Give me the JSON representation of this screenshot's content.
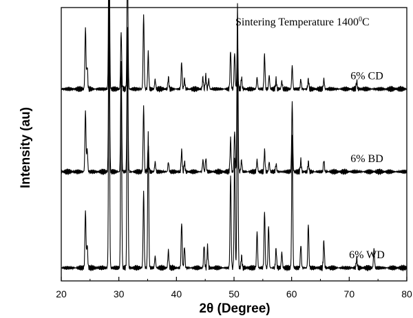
{
  "chart_data": {
    "type": "line",
    "title": "",
    "annotation": {
      "text": "Sintering Temperature 1400",
      "sup": "0",
      "suffix": "C"
    },
    "xlabel": "2θ (Degree)",
    "ylabel": "Intensity (au)",
    "xlim": [
      20,
      80
    ],
    "xticks": [
      20,
      30,
      40,
      50,
      60,
      70,
      80
    ],
    "y_ticks_shown": false,
    "grid": false,
    "legend": "none",
    "line_color": "#000000",
    "series": [
      {
        "name": "6% CD",
        "baseline": 0.93,
        "peaks": [
          [
            24.2,
            0.32
          ],
          [
            24.5,
            0.12
          ],
          [
            28.3,
            0.97
          ],
          [
            30.4,
            0.3
          ],
          [
            31.5,
            0.67
          ],
          [
            34.3,
            0.39
          ],
          [
            35.1,
            0.19
          ],
          [
            36.3,
            0.05
          ],
          [
            38.6,
            0.06
          ],
          [
            40.9,
            0.14
          ],
          [
            41.4,
            0.05
          ],
          [
            44.6,
            0.06
          ],
          [
            45.1,
            0.07
          ],
          [
            45.6,
            0.05
          ],
          [
            49.4,
            0.2
          ],
          [
            50.1,
            0.19
          ],
          [
            50.6,
            0.24
          ],
          [
            51.3,
            0.06
          ],
          [
            54.0,
            0.06
          ],
          [
            55.3,
            0.18
          ],
          [
            56.1,
            0.07
          ],
          [
            57.3,
            0.05
          ],
          [
            58.3,
            0.04
          ],
          [
            60.1,
            0.12
          ],
          [
            61.6,
            0.05
          ],
          [
            62.9,
            0.05
          ],
          [
            65.6,
            0.05
          ],
          [
            71.3,
            0.04
          ]
        ]
      },
      {
        "name": "6% BD",
        "baseline": 0.5,
        "peaks": [
          [
            24.2,
            0.32
          ],
          [
            24.5,
            0.12
          ],
          [
            28.3,
            0.92
          ],
          [
            30.4,
            0.57
          ],
          [
            31.5,
            0.74
          ],
          [
            34.3,
            0.34
          ],
          [
            35.1,
            0.14
          ],
          [
            36.3,
            0.05
          ],
          [
            38.6,
            0.05
          ],
          [
            40.9,
            0.11
          ],
          [
            41.4,
            0.05
          ],
          [
            44.6,
            0.06
          ],
          [
            45.1,
            0.07
          ],
          [
            49.4,
            0.17
          ],
          [
            50.1,
            0.21
          ],
          [
            50.6,
            0.88
          ],
          [
            51.3,
            0.06
          ],
          [
            54.0,
            0.06
          ],
          [
            55.3,
            0.11
          ],
          [
            56.1,
            0.05
          ],
          [
            57.3,
            0.04
          ],
          [
            60.1,
            0.36
          ],
          [
            61.6,
            0.06
          ],
          [
            62.9,
            0.05
          ],
          [
            65.6,
            0.06
          ]
        ]
      },
      {
        "name": "6% WD",
        "baseline": 0.0,
        "peaks": [
          [
            24.2,
            0.3
          ],
          [
            24.5,
            0.12
          ],
          [
            28.3,
            1.3
          ],
          [
            30.4,
            1.07
          ],
          [
            31.5,
            1.24
          ],
          [
            34.3,
            0.4
          ],
          [
            35.1,
            0.71
          ],
          [
            36.3,
            0.06
          ],
          [
            38.6,
            0.09
          ],
          [
            40.9,
            0.24
          ],
          [
            41.4,
            0.11
          ],
          [
            44.8,
            0.12
          ],
          [
            45.4,
            0.11
          ],
          [
            49.4,
            0.49
          ],
          [
            50.1,
            0.58
          ],
          [
            50.6,
            1.15
          ],
          [
            51.3,
            0.06
          ],
          [
            54.0,
            0.19
          ],
          [
            55.3,
            0.3
          ],
          [
            56.0,
            0.22
          ],
          [
            57.3,
            0.1
          ],
          [
            58.3,
            0.08
          ],
          [
            60.1,
            0.69
          ],
          [
            61.6,
            0.12
          ],
          [
            62.9,
            0.23
          ],
          [
            65.6,
            0.14
          ],
          [
            71.3,
            0.05
          ],
          [
            74.3,
            0.1
          ]
        ]
      }
    ]
  }
}
